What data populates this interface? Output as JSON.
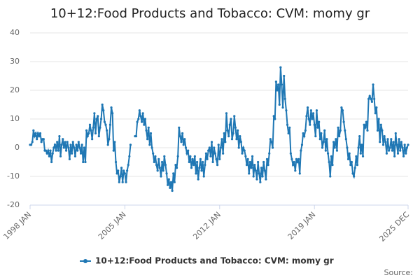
{
  "chart_data": {
    "type": "line",
    "title": "10+12:Food Products and Tobacco: CVM: momy gr",
    "source": "Source:",
    "categories": [
      "1998 JAN",
      null,
      null,
      null,
      null,
      null,
      null,
      null,
      null,
      null,
      null,
      null,
      null,
      null,
      null,
      null,
      null,
      null,
      null,
      null,
      null,
      null,
      null,
      null,
      null,
      null,
      null,
      null,
      null,
      null,
      null,
      null,
      null,
      null,
      null,
      null,
      null,
      null,
      null,
      null,
      null,
      null,
      null,
      null,
      null,
      null,
      null,
      null,
      null,
      null,
      null,
      null,
      null,
      null,
      null,
      null,
      null,
      null,
      null,
      null,
      null,
      null,
      null,
      null,
      null,
      null,
      null,
      null,
      null,
      null,
      null,
      null,
      null,
      null,
      null,
      null,
      null,
      null,
      null,
      null,
      null,
      null,
      null,
      null,
      "2005 JAN",
      null,
      null,
      null,
      null,
      null,
      null,
      null,
      null,
      null,
      null,
      null,
      null,
      null,
      null,
      null,
      null,
      null,
      null,
      null,
      null,
      null,
      null,
      null,
      null,
      null,
      null,
      null,
      null,
      null,
      null,
      null,
      null,
      null,
      null,
      null,
      null,
      null,
      null,
      null,
      null,
      null,
      null,
      null,
      null,
      null,
      null,
      null,
      null,
      null,
      null,
      null,
      null,
      null,
      null,
      null,
      null,
      null,
      null,
      null,
      null,
      null,
      null,
      null,
      null,
      null,
      null,
      null,
      null,
      null,
      null,
      null,
      null,
      null,
      null,
      null,
      null,
      null,
      null,
      null,
      null,
      null,
      null,
      null,
      "2012 JAN",
      null,
      null,
      null,
      null,
      null,
      null,
      null,
      null,
      null,
      null,
      null,
      null,
      null,
      null,
      null,
      null,
      null,
      null,
      null,
      null,
      null,
      null,
      null,
      null,
      null,
      null,
      null,
      null,
      null,
      null,
      null,
      null,
      null,
      null,
      null,
      null,
      null,
      null,
      null,
      null,
      null,
      null,
      null,
      null,
      null,
      null,
      null,
      null,
      null,
      null,
      null,
      null,
      null,
      null,
      null,
      null,
      null,
      null,
      null,
      null,
      null,
      null,
      null,
      null,
      null,
      null,
      null,
      null,
      null,
      null,
      null,
      null,
      null,
      null,
      null,
      null,
      null,
      null,
      null,
      null,
      null,
      null,
      null,
      "2019 JAN",
      null,
      null,
      null,
      null,
      null,
      null,
      null,
      null,
      null,
      null,
      null,
      null,
      null,
      null,
      null,
      null,
      null,
      null,
      null,
      null,
      null,
      null,
      null,
      null,
      null,
      null,
      null,
      null,
      null,
      null,
      null,
      null,
      null,
      null,
      null,
      null,
      null,
      null,
      null,
      null,
      null,
      null,
      null,
      null,
      null,
      null,
      null,
      null,
      null,
      null,
      null,
      null,
      null,
      null,
      null,
      null,
      null,
      null,
      null,
      null,
      null,
      null,
      null,
      null,
      null,
      null,
      null,
      null,
      null,
      null,
      null,
      null,
      null,
      null,
      null,
      null,
      null,
      null,
      null,
      null,
      null,
      null,
      "2025 DEC"
    ],
    "series": [
      {
        "name": "10+12:Food Products and Tobacco: CVM: momy gr",
        "color": "#1f77b4",
        "values": [
          1,
          1,
          2,
          6,
          4,
          5,
          3,
          5,
          4,
          5,
          2,
          3,
          3,
          -1,
          -1,
          -2,
          -1,
          -3,
          -1,
          -5,
          -2,
          0,
          1,
          -1,
          2,
          -1,
          4,
          -3,
          1,
          3,
          0,
          2,
          -1,
          2,
          0,
          -4,
          1,
          -2,
          2,
          0,
          -3,
          1,
          -1,
          2,
          0,
          -2,
          1,
          -5,
          0,
          -5,
          6,
          4,
          5,
          8,
          6,
          3,
          7,
          12,
          5,
          10,
          11,
          4,
          7,
          10,
          15,
          13,
          9,
          8,
          6,
          1,
          3,
          8,
          14,
          12,
          -1,
          2,
          -5,
          -9,
          -8,
          -12,
          -10,
          -7,
          -12,
          -8,
          -9,
          -12,
          -8,
          -6,
          -3,
          1,
          null,
          null,
          null,
          4,
          4,
          9,
          10,
          13,
          11,
          9,
          12,
          8,
          10,
          6,
          3,
          7,
          1,
          5,
          0,
          -2,
          -5,
          -3,
          -6,
          -8,
          -4,
          -7,
          -10,
          -5,
          -8,
          -3,
          -6,
          -9,
          -13,
          -11,
          -14,
          -12,
          -15,
          -9,
          -12,
          -6,
          -7,
          -3,
          7,
          4,
          2,
          5,
          1,
          3,
          0,
          -2,
          -1,
          -5,
          -3,
          -7,
          -4,
          -6,
          -3,
          -9,
          -5,
          -11,
          -7,
          -4,
          -8,
          -5,
          -10,
          -6,
          -2,
          -4,
          -1,
          0,
          -3,
          2,
          -5,
          0,
          -2,
          -4,
          -6,
          1,
          -4,
          0,
          3,
          -2,
          5,
          2,
          12,
          6,
          4,
          8,
          10,
          3,
          5,
          11,
          7,
          3,
          6,
          0,
          4,
          2,
          -2,
          0,
          -1,
          -3,
          -6,
          -4,
          -9,
          -5,
          -7,
          -3,
          -10,
          -6,
          -8,
          -11,
          -5,
          -9,
          -12,
          -7,
          -10,
          -5,
          -8,
          -11,
          -4,
          -6,
          -2,
          3,
          2,
          0,
          11,
          10,
          23,
          20,
          22,
          15,
          28,
          22,
          14,
          25,
          17,
          13,
          8,
          5,
          7,
          -2,
          -4,
          -6,
          -5,
          -8,
          -4,
          -5,
          -4,
          -9,
          -1,
          1,
          5,
          4,
          6,
          11,
          14,
          10,
          8,
          13,
          10,
          12,
          8,
          4,
          13,
          7,
          9,
          3,
          5,
          0,
          2,
          6,
          -1,
          3,
          -2,
          -5,
          -10,
          -3,
          -6,
          2,
          0,
          3,
          -1,
          7,
          4,
          6,
          14,
          13,
          9,
          6,
          3,
          0,
          -4,
          -2,
          -6,
          -5,
          -9,
          -10,
          -7,
          -3,
          -6,
          0,
          4,
          -2,
          1,
          -3,
          8,
          7,
          9,
          6,
          17,
          18,
          17,
          16,
          22,
          17,
          12,
          14,
          6,
          10,
          2,
          8,
          6,
          1,
          4,
          2,
          -2,
          3,
          -1,
          0,
          3,
          -1,
          2,
          -3,
          5,
          1,
          -2,
          3,
          -1,
          2,
          0,
          -3,
          1,
          -2,
          0,
          1
        ]
      }
    ],
    "ylim": [
      -20,
      40
    ],
    "yticks": [
      -20,
      -10,
      0,
      10,
      20,
      30,
      40
    ],
    "grid": true,
    "legend": "bottom"
  }
}
